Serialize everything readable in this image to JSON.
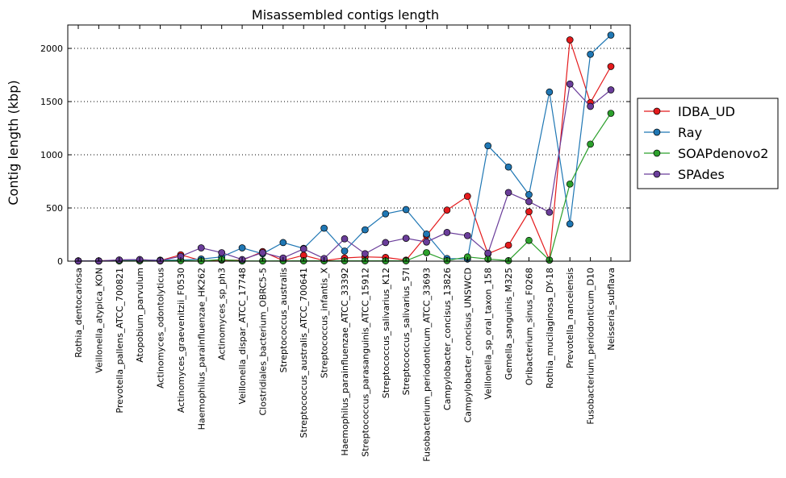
{
  "chart_data": {
    "type": "line",
    "title": "Misassembled contigs length",
    "xlabel": "",
    "ylabel": "Contig length (kbp)",
    "ylim": [
      0,
      2220
    ],
    "yticks": [
      0,
      500,
      1000,
      1500,
      2000
    ],
    "grid": "horizontal-dotted",
    "legend_position": "right",
    "categories": [
      "Rothia_dentocariosa",
      "Veillonella_atypica_KON",
      "Prevotella_pallens_ATCC_700821",
      "Atopobium_parvulum",
      "Actinomyces_odontolyticus",
      "Actinomyces_graevenitzii_F0530",
      "Haemophilus_parainfluenzae_HK262",
      "Actinomyces_sp_ph3",
      "Veillonella_dispar_ATCC_17748",
      "Clostridiales_bacterium_OBRC5-5",
      "Streptococcus_australis",
      "Streptococcus_australis_ATCC_700641",
      "Streptococcus_infantis_X",
      "Haemophilus_parainfluenzae_ATCC_33392",
      "Streptococcus_parasanguinis_ATCC_15912",
      "Streptococcus_salivarius_K12",
      "Streptococcus_salivarius_57I",
      "Fusobacterium_periodonticum_ATCC_33693",
      "Campylobacter_concisus_13826",
      "Campylobacter_concisus_UNSWCD",
      "Veillonella_sp_oral_taxon_158",
      "Gemella_sanguinis_M325",
      "Oribacterium_sinus_F0268",
      "Rothia_mucilaginosa_DY-18",
      "Prevotella_nanceiensis",
      "Fusobacterium_periodonticum_D10",
      "Neisseria_subflava"
    ],
    "series": [
      {
        "name": "IDBA_UD",
        "color": "#e41a1c",
        "values": [
          3,
          3,
          10,
          14,
          5,
          60,
          5,
          10,
          8,
          90,
          5,
          55,
          5,
          30,
          40,
          35,
          10,
          240,
          480,
          610,
          70,
          150,
          465,
          10,
          2080,
          1490,
          1830
        ]
      },
      {
        "name": "Ray",
        "color": "#1f77b4",
        "values": [
          2,
          2,
          5,
          8,
          10,
          10,
          20,
          40,
          125,
          70,
          175,
          120,
          310,
          95,
          295,
          445,
          485,
          255,
          25,
          20,
          1085,
          885,
          625,
          1590,
          350,
          1945,
          2125
        ]
      },
      {
        "name": "SOAPdenovo2",
        "color": "#2ca02c",
        "values": [
          1,
          1,
          2,
          3,
          2,
          5,
          3,
          15,
          2,
          2,
          3,
          3,
          3,
          3,
          3,
          3,
          3,
          80,
          5,
          40,
          20,
          5,
          195,
          10,
          725,
          1100,
          1390
        ]
      },
      {
        "name": "SPAdes",
        "color": "#6a3d9a",
        "values": [
          2,
          2,
          12,
          15,
          5,
          45,
          125,
          80,
          15,
          80,
          30,
          115,
          25,
          210,
          70,
          175,
          215,
          180,
          270,
          240,
          75,
          645,
          560,
          460,
          1665,
          1455,
          1610
        ]
      }
    ]
  }
}
